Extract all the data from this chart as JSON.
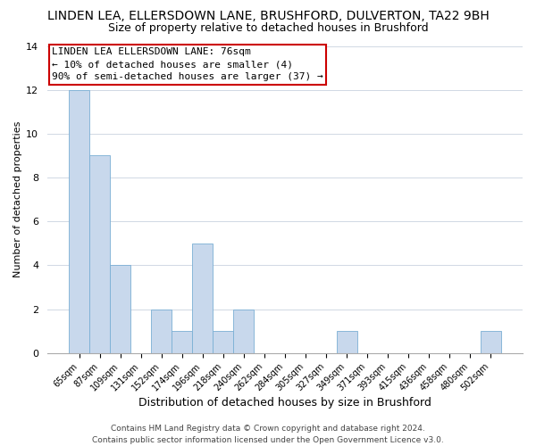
{
  "title": "LINDEN LEA, ELLERSDOWN LANE, BRUSHFORD, DULVERTON, TA22 9BH",
  "subtitle": "Size of property relative to detached houses in Brushford",
  "xlabel": "Distribution of detached houses by size in Brushford",
  "ylabel": "Number of detached properties",
  "bin_labels": [
    "65sqm",
    "87sqm",
    "109sqm",
    "131sqm",
    "152sqm",
    "174sqm",
    "196sqm",
    "218sqm",
    "240sqm",
    "262sqm",
    "284sqm",
    "305sqm",
    "327sqm",
    "349sqm",
    "371sqm",
    "393sqm",
    "415sqm",
    "436sqm",
    "458sqm",
    "480sqm",
    "502sqm"
  ],
  "bar_heights": [
    12,
    9,
    4,
    0,
    2,
    1,
    5,
    1,
    2,
    0,
    0,
    0,
    0,
    1,
    0,
    0,
    0,
    0,
    0,
    0,
    1
  ],
  "bar_color": "#c8d8ec",
  "bar_edge_color": "#7aafd4",
  "ylim": [
    0,
    14
  ],
  "yticks": [
    0,
    2,
    4,
    6,
    8,
    10,
    12,
    14
  ],
  "annotation_line1": "LINDEN LEA ELLERSDOWN LANE: 76sqm",
  "annotation_line2": "← 10% of detached houses are smaller (4)",
  "annotation_line3": "90% of semi-detached houses are larger (37) →",
  "annotation_box_color": "#ffffff",
  "annotation_box_edge_color": "#cc0000",
  "footer_line1": "Contains HM Land Registry data © Crown copyright and database right 2024.",
  "footer_line2": "Contains public sector information licensed under the Open Government Licence v3.0.",
  "grid_color": "#d0d8e4",
  "background_color": "#ffffff",
  "title_fontsize": 10,
  "subtitle_fontsize": 9,
  "annotation_fontsize": 8,
  "footer_fontsize": 6.5,
  "ylabel_fontsize": 8,
  "xlabel_fontsize": 9
}
